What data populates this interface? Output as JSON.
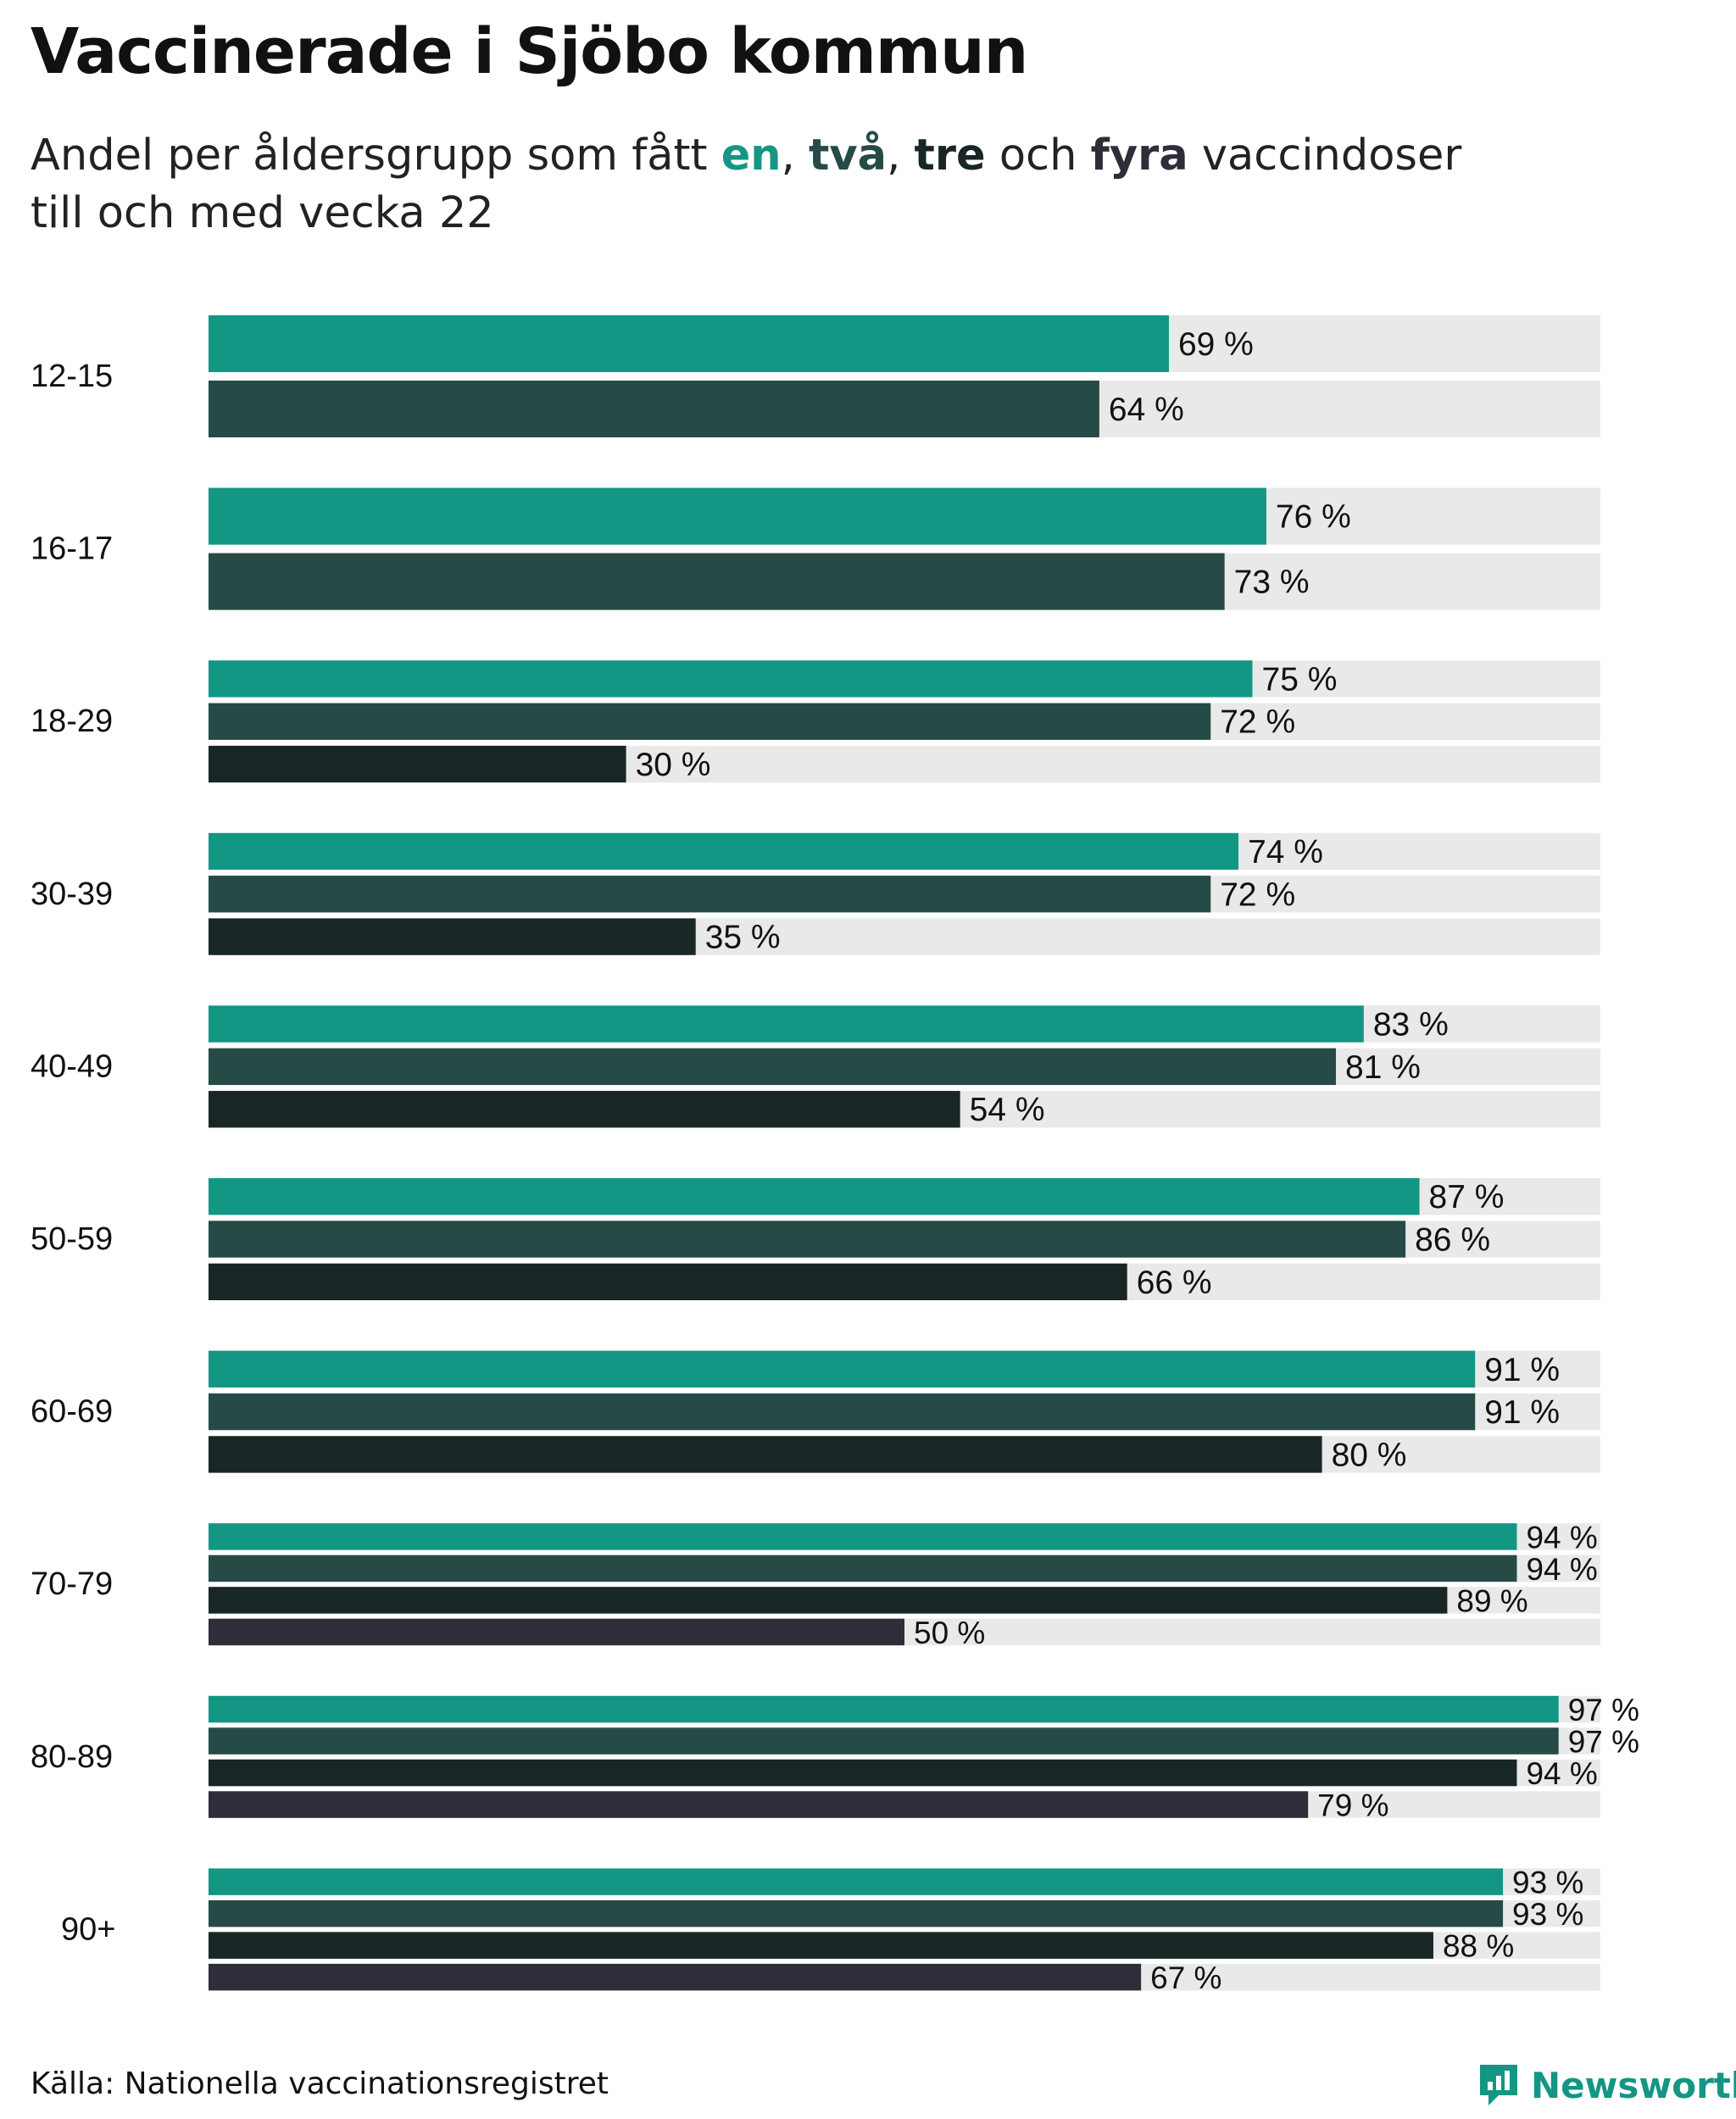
{
  "title": "Vaccinerade i Sjöbo kommun",
  "subtitle": {
    "prefix": "Andel per åldersgrupp som fått ",
    "dose1": "en",
    "sep1": ", ",
    "dose2": "två",
    "sep2": ", ",
    "dose3": "tre",
    "and": " och ",
    "dose4": "fyra",
    "suffix": " vaccindoser",
    "line2": "till och med vecka 22"
  },
  "source": "Källa: Nationella vaccinationsregistret",
  "brand": "Newsworthy",
  "colors": {
    "dose1": "#139683",
    "dose2": "#264b47",
    "dose3": "#182726",
    "dose4": "#2e2d3a",
    "track": "#e9e9e9"
  },
  "chart_data": {
    "type": "bar",
    "orientation": "horizontal",
    "xlim": [
      0,
      100
    ],
    "value_suffix": " %",
    "categories": [
      "12-15",
      "16-17",
      "18-29",
      "30-39",
      "40-49",
      "50-59",
      "60-69",
      "70-79",
      "80-89",
      "90+"
    ],
    "series": [
      {
        "name": "en",
        "values": [
          69,
          76,
          75,
          74,
          83,
          87,
          91,
          94,
          97,
          93
        ]
      },
      {
        "name": "två",
        "values": [
          64,
          73,
          72,
          72,
          81,
          86,
          91,
          94,
          97,
          93
        ]
      },
      {
        "name": "tre",
        "values": [
          null,
          null,
          30,
          35,
          54,
          66,
          80,
          89,
          94,
          88
        ]
      },
      {
        "name": "fyra",
        "values": [
          null,
          null,
          null,
          null,
          null,
          null,
          null,
          50,
          79,
          67
        ]
      }
    ]
  }
}
